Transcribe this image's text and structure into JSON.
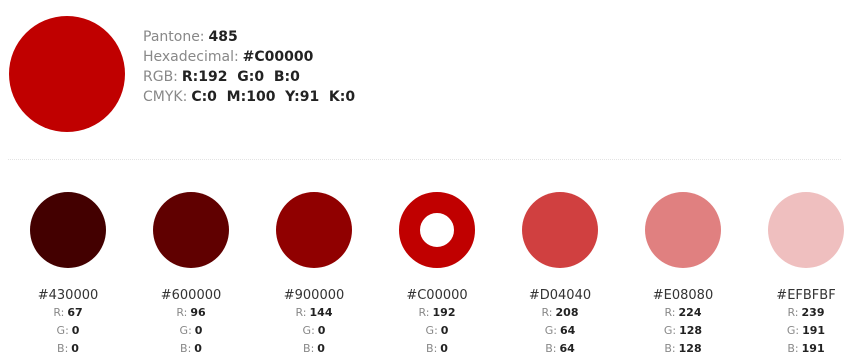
{
  "main_color": {
    "swatch_color": "#C00000",
    "pantone": {
      "label": "Pantone:",
      "value": "485"
    },
    "hex": {
      "label": "Hexadecimal:",
      "value": "#C00000"
    },
    "rgb": {
      "label": "RGB:",
      "value": "R:192  G:0  B:0"
    },
    "cmyk": {
      "label": "CMYK:",
      "value": "C:0  M:100  Y:91  K:0"
    }
  },
  "shades": [
    {
      "hex": "#430000",
      "color": "#430000",
      "r_label": "R:",
      "r": "67",
      "g_label": "G:",
      "g": "0",
      "b_label": "B:",
      "b": "0"
    },
    {
      "hex": "#600000",
      "color": "#600000",
      "r_label": "R:",
      "r": "96",
      "g_label": "G:",
      "g": "0",
      "b_label": "B:",
      "b": "0"
    },
    {
      "hex": "#900000",
      "color": "#900000",
      "r_label": "R:",
      "r": "144",
      "g_label": "G:",
      "g": "0",
      "b_label": "B:",
      "b": "0"
    },
    {
      "hex": "#C00000",
      "color": "#C00000",
      "r_label": "R:",
      "r": "192",
      "g_label": "G:",
      "g": "0",
      "b_label": "B:",
      "b": "0"
    },
    {
      "hex": "#D04040",
      "color": "#D04040",
      "r_label": "R:",
      "r": "208",
      "g_label": "G:",
      "g": "64",
      "b_label": "B:",
      "b": "64"
    },
    {
      "hex": "#E08080",
      "color": "#E08080",
      "r_label": "R:",
      "r": "224",
      "g_label": "G:",
      "g": "128",
      "b_label": "B:",
      "b": "128"
    },
    {
      "hex": "#EFBFBF",
      "color": "#EFBFBF",
      "r_label": "R:",
      "r": "239",
      "g_label": "G:",
      "g": "191",
      "b_label": "B:",
      "b": "191"
    }
  ]
}
